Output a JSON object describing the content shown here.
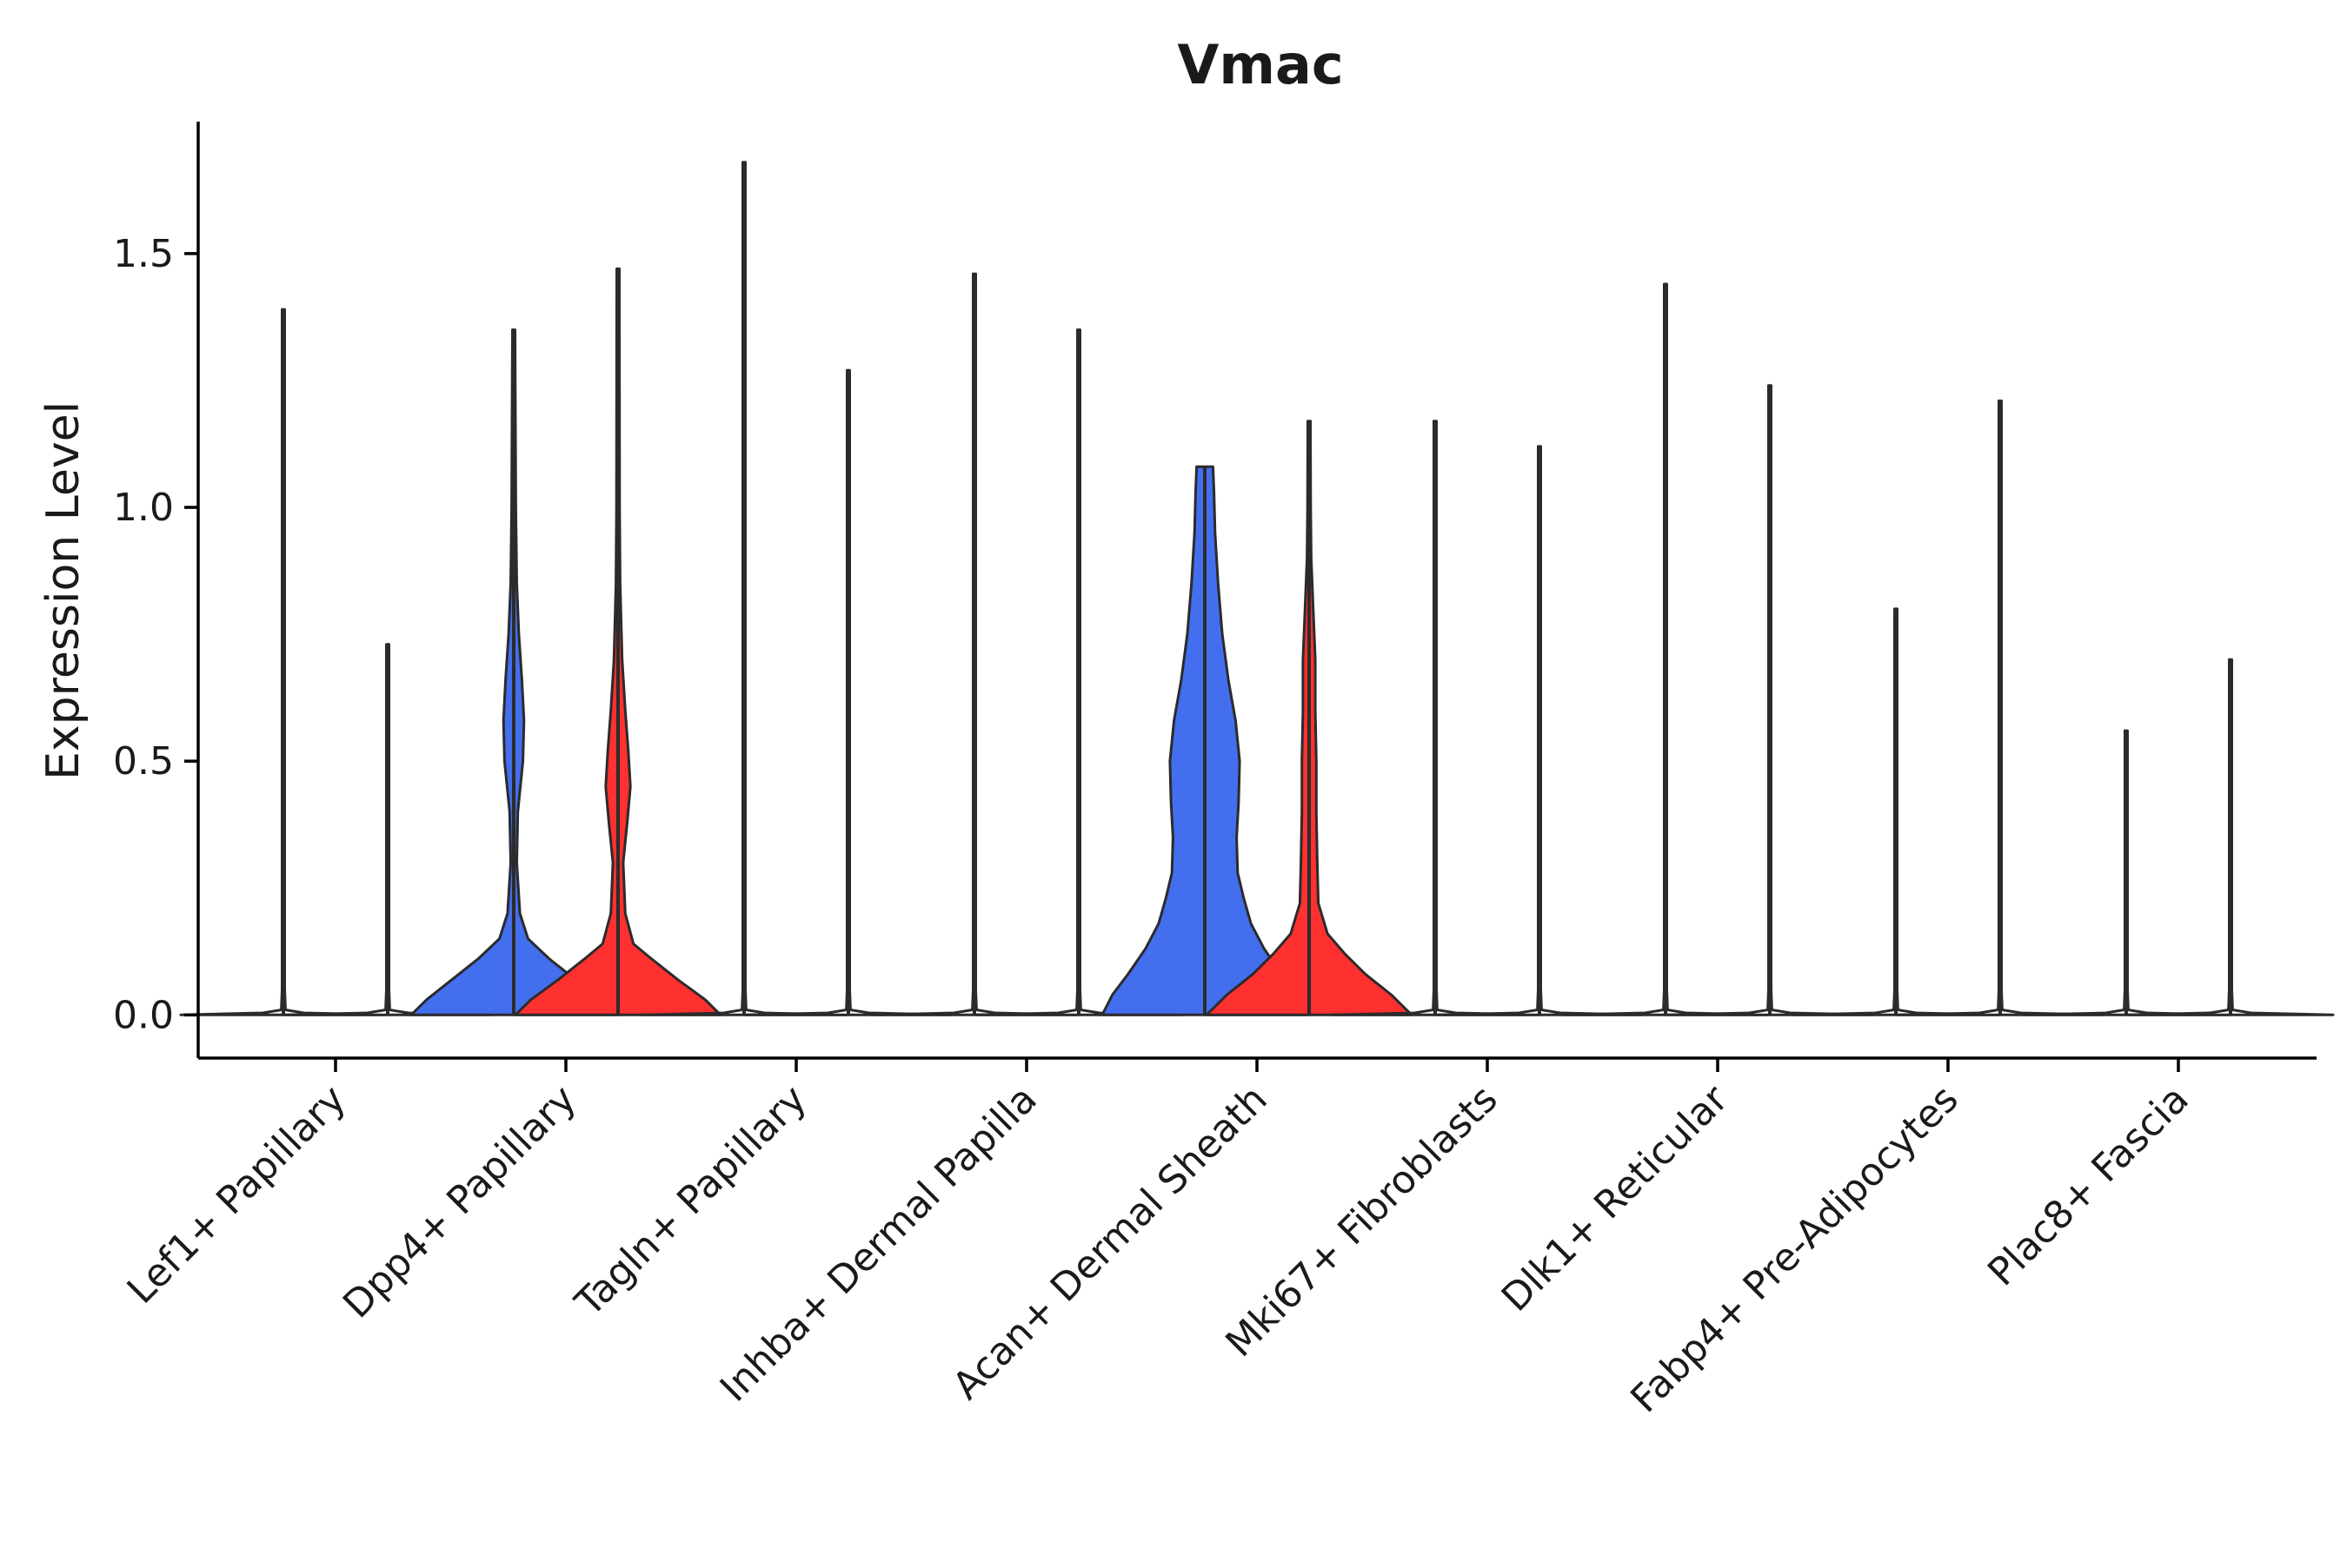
{
  "chart_data": {
    "type": "violin",
    "title": "Vmac",
    "xlabel": "",
    "ylabel": "Expression Level",
    "ylim": [
      -0.085,
      1.76
    ],
    "yticks": [
      0.0,
      0.5,
      1.0,
      1.5
    ],
    "ytick_labels": [
      "0.0",
      "0.5",
      "1.0",
      "1.5"
    ],
    "grid": false,
    "legend": "none",
    "series_colors": {
      "blue_group": "#436EEE",
      "red_group": "#FF3030"
    },
    "categories": [
      "Lef1+ Papillary",
      "Dpp4+ Papillary",
      "Tagln+ Papillary",
      "Inhba+ Dermal Papilla",
      "Acan+ Dermal Sheath",
      "Mki67+ Fibroblasts",
      "Dlk1+ Reticular",
      "Fabp4+ Pre-Adipocytes",
      "Plac8+ Fascia"
    ],
    "violins": [
      {
        "category": "Lef1+ Papillary",
        "side": "left",
        "fill": "#ffffff",
        "max": 1.39,
        "profile": [
          [
            0,
            1
          ],
          [
            0.004,
            0.2
          ],
          [
            0.01,
            0.02
          ],
          [
            0.05,
            0.01
          ],
          [
            1.39,
            0.01
          ]
        ]
      },
      {
        "category": "Lef1+ Papillary",
        "side": "right",
        "fill": "#ffffff",
        "max": 0.73,
        "profile": [
          [
            0,
            1
          ],
          [
            0.004,
            0.2
          ],
          [
            0.01,
            0.02
          ],
          [
            0.05,
            0.01
          ],
          [
            0.73,
            0.01
          ]
        ]
      },
      {
        "category": "Dpp4+ Papillary",
        "side": "left",
        "fill": "#436EEE",
        "max": 1.35,
        "profile": [
          [
            0,
            1
          ],
          [
            0.03,
            0.85
          ],
          [
            0.07,
            0.6
          ],
          [
            0.11,
            0.35
          ],
          [
            0.15,
            0.14
          ],
          [
            0.2,
            0.06
          ],
          [
            0.3,
            0.03
          ],
          [
            0.4,
            0.04
          ],
          [
            0.5,
            0.09
          ],
          [
            0.58,
            0.1
          ],
          [
            0.66,
            0.08
          ],
          [
            0.75,
            0.05
          ],
          [
            0.85,
            0.03
          ],
          [
            1.0,
            0.02
          ],
          [
            1.35,
            0.01
          ]
        ]
      },
      {
        "category": "Dpp4+ Papillary",
        "side": "right",
        "fill": "#FF3030",
        "max": 1.47,
        "profile": [
          [
            0,
            1
          ],
          [
            0.03,
            0.85
          ],
          [
            0.07,
            0.58
          ],
          [
            0.11,
            0.33
          ],
          [
            0.14,
            0.15
          ],
          [
            0.2,
            0.07
          ],
          [
            0.3,
            0.05
          ],
          [
            0.38,
            0.09
          ],
          [
            0.45,
            0.12
          ],
          [
            0.52,
            0.1
          ],
          [
            0.6,
            0.07
          ],
          [
            0.7,
            0.04
          ],
          [
            0.85,
            0.02
          ],
          [
            1.0,
            0.015
          ],
          [
            1.47,
            0.01
          ]
        ]
      },
      {
        "category": "Tagln+ Papillary",
        "side": "left",
        "fill": "#ffffff",
        "max": 1.68,
        "profile": [
          [
            0,
            1
          ],
          [
            0.004,
            0.2
          ],
          [
            0.01,
            0.02
          ],
          [
            0.05,
            0.01
          ],
          [
            1.68,
            0.01
          ]
        ]
      },
      {
        "category": "Tagln+ Papillary",
        "side": "right",
        "fill": "#ffffff",
        "max": 1.27,
        "profile": [
          [
            0,
            1
          ],
          [
            0.004,
            0.2
          ],
          [
            0.01,
            0.02
          ],
          [
            0.05,
            0.01
          ],
          [
            1.27,
            0.01
          ]
        ]
      },
      {
        "category": "Inhba+ Dermal Papilla",
        "side": "left",
        "fill": "#ffffff",
        "max": 1.46,
        "profile": [
          [
            0,
            1
          ],
          [
            0.004,
            0.2
          ],
          [
            0.01,
            0.02
          ],
          [
            0.05,
            0.01
          ],
          [
            1.46,
            0.01
          ]
        ]
      },
      {
        "category": "Inhba+ Dermal Papilla",
        "side": "right",
        "fill": "#ffffff",
        "max": 1.35,
        "profile": [
          [
            0,
            1
          ],
          [
            0.004,
            0.2
          ],
          [
            0.01,
            0.02
          ],
          [
            0.05,
            0.01
          ],
          [
            1.35,
            0.01
          ]
        ]
      },
      {
        "category": "Acan+ Dermal Sheath",
        "side": "left",
        "fill": "#436EEE",
        "max": 1.08,
        "profile": [
          [
            0,
            1
          ],
          [
            0.04,
            0.9
          ],
          [
            0.08,
            0.75
          ],
          [
            0.13,
            0.58
          ],
          [
            0.18,
            0.45
          ],
          [
            0.23,
            0.38
          ],
          [
            0.28,
            0.32
          ],
          [
            0.35,
            0.31
          ],
          [
            0.42,
            0.33
          ],
          [
            0.5,
            0.34
          ],
          [
            0.58,
            0.3
          ],
          [
            0.66,
            0.23
          ],
          [
            0.75,
            0.17
          ],
          [
            0.85,
            0.13
          ],
          [
            0.95,
            0.1
          ],
          [
            1.03,
            0.09
          ],
          [
            1.08,
            0.08
          ]
        ]
      },
      {
        "category": "Acan+ Dermal Sheath",
        "side": "right",
        "fill": "#FF3030",
        "max": 1.17,
        "profile": [
          [
            0,
            1
          ],
          [
            0.04,
            0.8
          ],
          [
            0.08,
            0.55
          ],
          [
            0.12,
            0.35
          ],
          [
            0.16,
            0.18
          ],
          [
            0.22,
            0.09
          ],
          [
            0.3,
            0.08
          ],
          [
            0.4,
            0.07
          ],
          [
            0.5,
            0.07
          ],
          [
            0.6,
            0.06
          ],
          [
            0.7,
            0.06
          ],
          [
            0.8,
            0.04
          ],
          [
            0.9,
            0.02
          ],
          [
            1.0,
            0.015
          ],
          [
            1.17,
            0.01
          ]
        ]
      },
      {
        "category": "Mki67+ Fibroblasts",
        "side": "left",
        "fill": "#ffffff",
        "max": 1.17,
        "profile": [
          [
            0,
            1
          ],
          [
            0.004,
            0.2
          ],
          [
            0.01,
            0.02
          ],
          [
            0.05,
            0.01
          ],
          [
            1.17,
            0.01
          ]
        ]
      },
      {
        "category": "Mki67+ Fibroblasts",
        "side": "right",
        "fill": "#ffffff",
        "max": 1.12,
        "profile": [
          [
            0,
            1
          ],
          [
            0.004,
            0.2
          ],
          [
            0.01,
            0.02
          ],
          [
            0.05,
            0.01
          ],
          [
            1.12,
            0.01
          ]
        ]
      },
      {
        "category": "Dlk1+ Reticular",
        "side": "left",
        "fill": "#ffffff",
        "max": 1.44,
        "profile": [
          [
            0,
            1
          ],
          [
            0.004,
            0.2
          ],
          [
            0.01,
            0.02
          ],
          [
            0.05,
            0.01
          ],
          [
            1.44,
            0.01
          ]
        ]
      },
      {
        "category": "Dlk1+ Reticular",
        "side": "right",
        "fill": "#ffffff",
        "max": 1.24,
        "profile": [
          [
            0,
            1
          ],
          [
            0.004,
            0.2
          ],
          [
            0.01,
            0.02
          ],
          [
            0.05,
            0.01
          ],
          [
            1.24,
            0.01
          ]
        ]
      },
      {
        "category": "Fabp4+ Pre-Adipocytes",
        "side": "left",
        "fill": "#ffffff",
        "max": 0.8,
        "profile": [
          [
            0,
            1
          ],
          [
            0.004,
            0.2
          ],
          [
            0.01,
            0.02
          ],
          [
            0.05,
            0.01
          ],
          [
            0.8,
            0.01
          ]
        ]
      },
      {
        "category": "Fabp4+ Pre-Adipocytes",
        "side": "right",
        "fill": "#ffffff",
        "max": 1.21,
        "profile": [
          [
            0,
            1
          ],
          [
            0.004,
            0.2
          ],
          [
            0.01,
            0.02
          ],
          [
            0.05,
            0.01
          ],
          [
            1.21,
            0.01
          ]
        ]
      },
      {
        "category": "Plac8+ Fascia",
        "side": "left",
        "fill": "#ffffff",
        "max": 0.56,
        "profile": [
          [
            0,
            1
          ],
          [
            0.004,
            0.2
          ],
          [
            0.01,
            0.02
          ],
          [
            0.05,
            0.01
          ],
          [
            0.56,
            0.01
          ]
        ]
      },
      {
        "category": "Plac8+ Fascia",
        "side": "right",
        "fill": "#ffffff",
        "max": 0.7,
        "profile": [
          [
            0,
            1
          ],
          [
            0.004,
            0.2
          ],
          [
            0.01,
            0.02
          ],
          [
            0.05,
            0.01
          ],
          [
            0.7,
            0.01
          ]
        ]
      }
    ]
  }
}
